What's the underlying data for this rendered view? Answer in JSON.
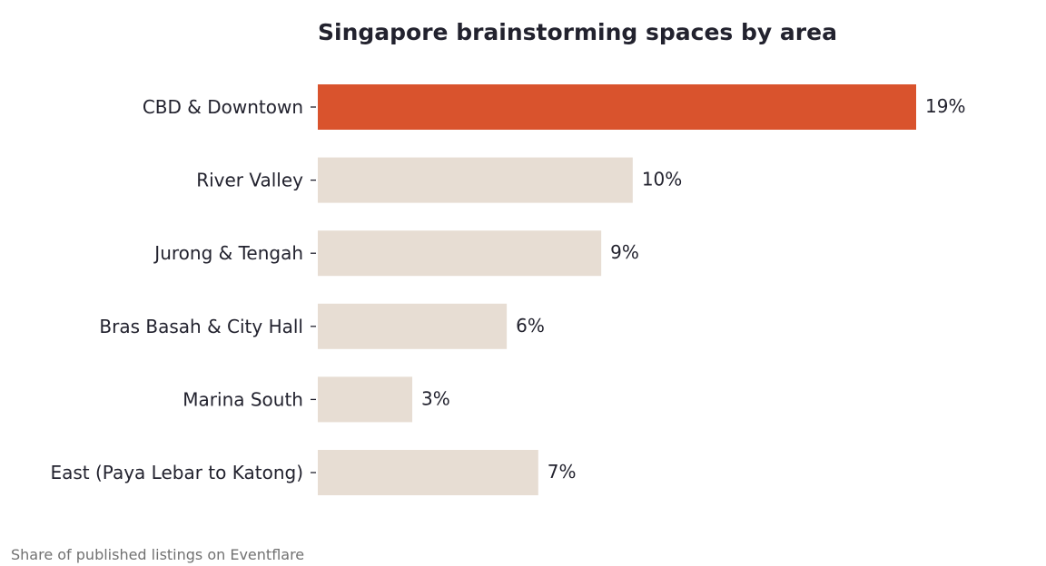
{
  "chart_data": {
    "type": "bar",
    "orientation": "horizontal",
    "title": "Singapore brainstorming spaces by area",
    "categories": [
      "CBD & Downtown",
      "River Valley",
      "Jurong & Tengah",
      "Bras Basah & City Hall",
      "Marina South",
      "East (Paya Lebar to Katong)"
    ],
    "values": [
      19,
      10,
      9,
      6,
      3,
      7
    ],
    "value_labels": [
      "19%",
      "10%",
      "9%",
      "6%",
      "3%",
      "7%"
    ],
    "unit": "%",
    "xlabel": "",
    "ylabel": "",
    "xlim": [
      0,
      20
    ],
    "grid": false,
    "legend": false,
    "highlight_index": 0,
    "colors": {
      "highlight": "#d9532d",
      "default": "#e7ddd3",
      "text": "#22222e"
    }
  },
  "footnote": "Share of published listings on Eventflare"
}
